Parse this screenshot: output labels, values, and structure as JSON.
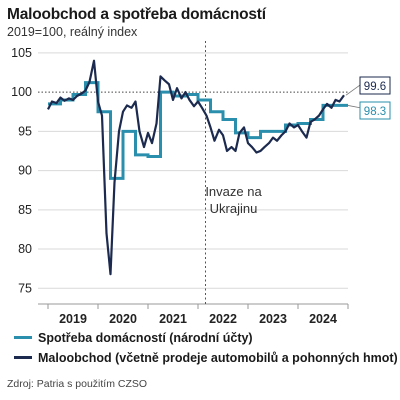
{
  "title": "Maloobchod a spotřeba domácností",
  "subtitle": "2019=100, reálný index",
  "source": "Zdroj: Patria s použitím CZSO",
  "colors": {
    "series1": "#2a8fad",
    "series2": "#1b2a4e",
    "grid": "#d9d9d9",
    "refline": "#555555"
  },
  "chart_data": {
    "type": "line",
    "title": "Maloobchod a spotřeba domácností",
    "subtitle": "2019=100, reálný index",
    "xlabel": "",
    "ylabel": "",
    "ylim": [
      73,
      106
    ],
    "xlim": [
      2018.8,
      2025.0
    ],
    "yticks": [
      "75",
      "80",
      "85",
      "90",
      "95",
      "100",
      "105"
    ],
    "ytick_values": [
      75,
      80,
      85,
      90,
      95,
      100,
      105
    ],
    "xticks": [
      "2019",
      "2020",
      "2021",
      "2022",
      "2023",
      "2024"
    ],
    "xtick_positions": [
      2019.5,
      2020.5,
      2021.5,
      2022.5,
      2023.5,
      2024.5
    ],
    "grid": "horizontal",
    "reference_line": {
      "y": 100,
      "style": "dotted"
    },
    "vertical_marker": {
      "x": 2022.15,
      "label_lines": [
        "Invaze na",
        "Ukrajinu"
      ]
    },
    "legend_position": "bottom",
    "series": [
      {
        "name": "Spotřeba domácností (národní účty)",
        "type": "step",
        "end_label": "98.3",
        "points": [
          [
            2019.0,
            98.5
          ],
          [
            2019.25,
            99.0
          ],
          [
            2019.5,
            99.7
          ],
          [
            2019.75,
            101.2
          ],
          [
            2020.0,
            97.5
          ],
          [
            2020.25,
            89.0
          ],
          [
            2020.5,
            95.0
          ],
          [
            2020.75,
            92.0
          ],
          [
            2021.0,
            91.8
          ],
          [
            2021.25,
            100.0
          ],
          [
            2021.5,
            99.5
          ],
          [
            2021.75,
            99.7
          ],
          [
            2022.0,
            99.0
          ],
          [
            2022.25,
            97.5
          ],
          [
            2022.5,
            96.5
          ],
          [
            2022.75,
            94.8
          ],
          [
            2023.0,
            94.2
          ],
          [
            2023.25,
            95.0
          ],
          [
            2023.5,
            95.0
          ],
          [
            2023.75,
            95.8
          ],
          [
            2024.0,
            96.0
          ],
          [
            2024.25,
            96.5
          ],
          [
            2024.5,
            98.3
          ],
          [
            2024.75,
            98.3
          ]
        ]
      },
      {
        "name": "Maloobchod (včetně prodeje automobilů a pohonných hmot)",
        "type": "line",
        "end_label": "99.6",
        "points": [
          [
            2019.0,
            97.8
          ],
          [
            2019.08,
            98.8
          ],
          [
            2019.17,
            98.6
          ],
          [
            2019.25,
            99.3
          ],
          [
            2019.33,
            98.9
          ],
          [
            2019.42,
            99.2
          ],
          [
            2019.5,
            99.0
          ],
          [
            2019.58,
            99.5
          ],
          [
            2019.67,
            99.8
          ],
          [
            2019.75,
            100.2
          ],
          [
            2019.83,
            101.3
          ],
          [
            2019.92,
            104.0
          ],
          [
            2020.0,
            98.8
          ],
          [
            2020.08,
            97.0
          ],
          [
            2020.17,
            82.0
          ],
          [
            2020.25,
            76.8
          ],
          [
            2020.33,
            88.5
          ],
          [
            2020.42,
            95.0
          ],
          [
            2020.5,
            97.5
          ],
          [
            2020.58,
            98.3
          ],
          [
            2020.67,
            98.0
          ],
          [
            2020.75,
            98.8
          ],
          [
            2020.83,
            95.0
          ],
          [
            2020.92,
            93.0
          ],
          [
            2021.0,
            94.8
          ],
          [
            2021.08,
            93.5
          ],
          [
            2021.17,
            96.0
          ],
          [
            2021.25,
            102.0
          ],
          [
            2021.33,
            101.5
          ],
          [
            2021.42,
            101.0
          ],
          [
            2021.5,
            99.0
          ],
          [
            2021.58,
            100.5
          ],
          [
            2021.67,
            99.2
          ],
          [
            2021.75,
            100.0
          ],
          [
            2021.83,
            99.0
          ],
          [
            2021.92,
            98.2
          ],
          [
            2022.0,
            98.8
          ],
          [
            2022.08,
            98.0
          ],
          [
            2022.17,
            97.0
          ],
          [
            2022.25,
            95.5
          ],
          [
            2022.33,
            93.8
          ],
          [
            2022.42,
            95.2
          ],
          [
            2022.5,
            94.5
          ],
          [
            2022.58,
            92.5
          ],
          [
            2022.67,
            93.0
          ],
          [
            2022.75,
            92.5
          ],
          [
            2022.83,
            94.8
          ],
          [
            2022.92,
            95.5
          ],
          [
            2023.0,
            93.5
          ],
          [
            2023.08,
            93.0
          ],
          [
            2023.17,
            92.3
          ],
          [
            2023.25,
            92.5
          ],
          [
            2023.33,
            93.0
          ],
          [
            2023.42,
            93.5
          ],
          [
            2023.5,
            94.2
          ],
          [
            2023.58,
            93.8
          ],
          [
            2023.67,
            94.5
          ],
          [
            2023.75,
            95.0
          ],
          [
            2023.83,
            96.0
          ],
          [
            2023.92,
            95.5
          ],
          [
            2024.0,
            95.8
          ],
          [
            2024.08,
            95.0
          ],
          [
            2024.17,
            94.2
          ],
          [
            2024.25,
            96.2
          ],
          [
            2024.33,
            96.5
          ],
          [
            2024.42,
            97.0
          ],
          [
            2024.5,
            97.8
          ],
          [
            2024.58,
            98.5
          ],
          [
            2024.67,
            98.0
          ],
          [
            2024.75,
            99.0
          ],
          [
            2024.83,
            98.8
          ],
          [
            2024.92,
            99.6
          ]
        ]
      }
    ]
  }
}
